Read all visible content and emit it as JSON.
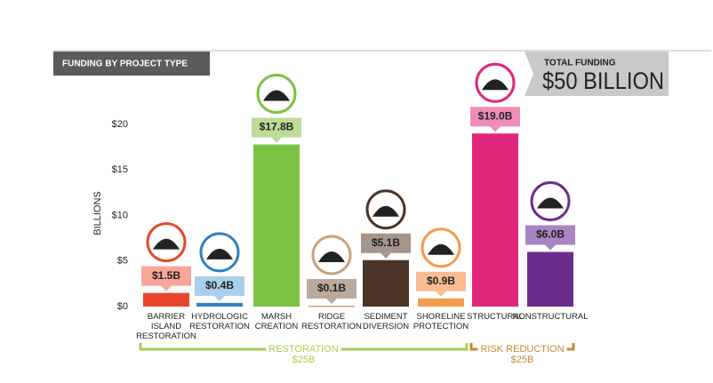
{
  "header": {
    "title": "FUNDING BY PROJECT TYPE",
    "total_caption": "TOTAL FUNDING",
    "total_value": "$50 BILLION"
  },
  "chart_data": {
    "type": "bar",
    "ylabel": "BILLIONS",
    "categories": [
      "BARRIER ISLAND RESTORATION",
      "HYDROLOGIC RESTORATION",
      "MARSH CREATION",
      "RIDGE RESTORATION",
      "SEDIMENT DIVERSION",
      "SHORELINE PROTECTION",
      "STRUCTURAL",
      "NONSTRUCTURAL"
    ],
    "values": [
      1.5,
      0.4,
      17.8,
      0.1,
      5.1,
      0.9,
      19.0,
      6.0
    ],
    "value_labels": [
      "$1.5B",
      "$0.4B",
      "$17.8B",
      "$0.1B",
      "$5.1B",
      "$0.9B",
      "$19.0B",
      "$6.0B"
    ],
    "colors": [
      "#e8472d",
      "#2f80c3",
      "#7cc242",
      "#c9a27e",
      "#4a3426",
      "#f39a4c",
      "#e0267a",
      "#6a2d8c"
    ],
    "label_colors": [
      "#f7a699",
      "#a9d0ea",
      "#bcdc98",
      "#bba99c",
      "#a5958a",
      "#f8bd92",
      "#f08cba",
      "#a983c2"
    ],
    "ylim": [
      0,
      20
    ],
    "yticks": [
      {
        "value": 0,
        "label": "$0"
      },
      {
        "value": 5,
        "label": "$5"
      },
      {
        "value": 10,
        "label": "$10"
      },
      {
        "value": 15,
        "label": "$15"
      },
      {
        "value": 20,
        "label": "$20"
      }
    ],
    "groups": [
      {
        "name": "RESTORATION",
        "total": "$25B",
        "color": "#a9cd54"
      },
      {
        "name": "RISK REDUCTION",
        "total": "$25B",
        "color": "#c8873a"
      }
    ]
  }
}
